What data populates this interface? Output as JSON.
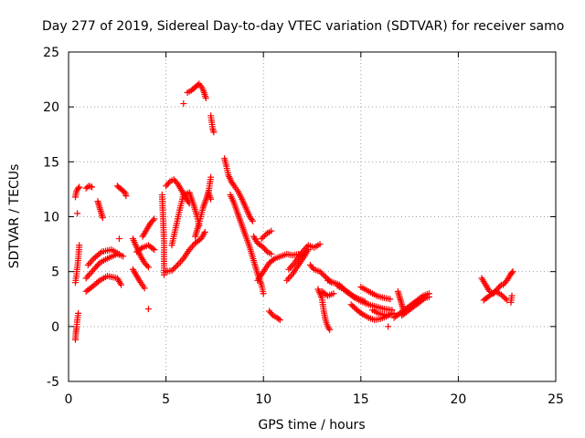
{
  "chart_data": {
    "type": "scatter",
    "title": "Day 277 of 2019, Sidereal Day-to-day VTEC variation (SDTVAR) for receiver samo",
    "xlabel": "GPS time / hours",
    "ylabel": "SDTVAR / TECUs",
    "xlim": [
      0,
      25
    ],
    "ylim": [
      -5,
      25
    ],
    "xticks": [
      0,
      5,
      10,
      15,
      20,
      25
    ],
    "yticks": [
      -5,
      0,
      5,
      10,
      15,
      20,
      25
    ],
    "grid": true,
    "marker": "+",
    "series": [
      {
        "name": "SDTVAR",
        "color": "#ff0000",
        "segments": [
          [
            [
              0.35,
              -1.2
            ],
            [
              0.38,
              -0.5
            ],
            [
              0.42,
              0.0
            ],
            [
              0.45,
              0.6
            ],
            [
              0.5,
              1.2
            ]
          ],
          [
            [
              0.35,
              4.0
            ],
            [
              0.4,
              4.6
            ],
            [
              0.45,
              5.4
            ],
            [
              0.5,
              6.2
            ],
            [
              0.55,
              7.4
            ]
          ],
          [
            [
              0.35,
              11.8
            ],
            [
              0.4,
              12.3
            ],
            [
              0.5,
              12.6
            ],
            [
              0.55,
              12.7
            ]
          ],
          [
            [
              0.45,
              10.3
            ]
          ],
          [
            [
              0.9,
              12.6
            ],
            [
              1.05,
              12.8
            ],
            [
              1.2,
              12.7
            ]
          ],
          [
            [
              0.9,
              3.2
            ],
            [
              1.2,
              3.6
            ],
            [
              1.6,
              4.2
            ],
            [
              2.0,
              4.6
            ],
            [
              2.5,
              4.4
            ],
            [
              2.7,
              3.8
            ]
          ],
          [
            [
              0.9,
              4.4
            ],
            [
              1.2,
              5.0
            ],
            [
              1.6,
              5.8
            ],
            [
              2.0,
              6.2
            ],
            [
              2.5,
              6.6
            ],
            [
              2.8,
              6.4
            ]
          ],
          [
            [
              1.0,
              5.6
            ],
            [
              1.3,
              6.2
            ],
            [
              1.7,
              6.8
            ],
            [
              2.2,
              7.0
            ],
            [
              2.6,
              6.6
            ]
          ],
          [
            [
              1.5,
              11.4
            ],
            [
              1.6,
              10.8
            ],
            [
              1.7,
              10.2
            ],
            [
              1.75,
              9.9
            ]
          ],
          [
            [
              2.5,
              12.8
            ],
            [
              2.7,
              12.5
            ],
            [
              2.9,
              12.2
            ],
            [
              2.95,
              11.9
            ]
          ],
          [
            [
              2.6,
              8.0
            ]
          ],
          [
            [
              3.3,
              8.0
            ],
            [
              3.5,
              7.2
            ],
            [
              3.7,
              6.4
            ],
            [
              3.9,
              5.8
            ],
            [
              4.1,
              5.4
            ]
          ],
          [
            [
              3.3,
              5.2
            ],
            [
              3.5,
              4.6
            ],
            [
              3.7,
              4.0
            ],
            [
              3.9,
              3.5
            ]
          ],
          [
            [
              3.5,
              6.8
            ],
            [
              3.8,
              7.2
            ],
            [
              4.1,
              7.4
            ],
            [
              4.4,
              7.0
            ]
          ],
          [
            [
              3.8,
              8.2
            ],
            [
              4.0,
              8.8
            ],
            [
              4.2,
              9.4
            ],
            [
              4.4,
              9.8
            ]
          ],
          [
            [
              4.1,
              1.6
            ]
          ],
          [
            [
              4.8,
              12.0
            ],
            [
              4.9,
              7.8
            ],
            [
              4.9,
              4.7
            ]
          ],
          [
            [
              5.0,
              5.0
            ],
            [
              5.3,
              5.1
            ],
            [
              5.6,
              5.6
            ],
            [
              5.9,
              6.2
            ],
            [
              6.2,
              7.0
            ],
            [
              6.5,
              7.6
            ],
            [
              6.8,
              8.0
            ],
            [
              7.0,
              8.6
            ]
          ],
          [
            [
              5.0,
              12.8
            ],
            [
              5.2,
              13.2
            ],
            [
              5.4,
              13.4
            ],
            [
              5.6,
              13.0
            ],
            [
              5.8,
              12.4
            ],
            [
              6.0,
              11.8
            ],
            [
              6.2,
              11.2
            ]
          ],
          [
            [
              5.3,
              7.4
            ],
            [
              5.5,
              9.0
            ],
            [
              5.7,
              10.6
            ],
            [
              5.9,
              12.0
            ],
            [
              6.2,
              12.2
            ],
            [
              6.4,
              11.2
            ],
            [
              6.6,
              10.0
            ],
            [
              6.7,
              9.2
            ]
          ],
          [
            [
              5.9,
              20.3
            ]
          ],
          [
            [
              6.1,
              21.3
            ],
            [
              6.3,
              21.5
            ],
            [
              6.5,
              21.8
            ],
            [
              6.7,
              22.1
            ],
            [
              6.9,
              21.6
            ],
            [
              7.05,
              20.8
            ]
          ],
          [
            [
              6.5,
              8.2
            ],
            [
              6.7,
              9.4
            ],
            [
              6.9,
              10.8
            ],
            [
              7.1,
              11.8
            ],
            [
              7.2,
              12.4
            ],
            [
              7.3,
              13.6
            ]
          ],
          [
            [
              7.3,
              19.2
            ],
            [
              7.4,
              18.0
            ],
            [
              7.45,
              17.7
            ]
          ],
          [
            [
              7.2,
              12.1
            ],
            [
              7.3,
              11.6
            ]
          ],
          [
            [
              8.0,
              15.3
            ],
            [
              8.1,
              14.6
            ],
            [
              8.2,
              13.8
            ],
            [
              8.35,
              13.2
            ],
            [
              8.5,
              12.8
            ],
            [
              8.7,
              12.3
            ],
            [
              8.9,
              11.6
            ],
            [
              9.1,
              10.8
            ],
            [
              9.3,
              10.0
            ],
            [
              9.45,
              9.6
            ]
          ],
          [
            [
              8.3,
              12.0
            ],
            [
              8.5,
              11.2
            ],
            [
              8.7,
              10.2
            ],
            [
              8.9,
              9.2
            ],
            [
              9.1,
              8.2
            ],
            [
              9.3,
              7.2
            ],
            [
              9.5,
              6.0
            ],
            [
              9.7,
              4.8
            ],
            [
              9.9,
              3.8
            ],
            [
              10.0,
              3.0
            ]
          ],
          [
            [
              9.5,
              8.2
            ],
            [
              9.7,
              7.6
            ],
            [
              10.0,
              7.2
            ],
            [
              10.2,
              6.8
            ],
            [
              10.4,
              6.6
            ]
          ],
          [
            [
              9.9,
              8.0
            ],
            [
              10.2,
              8.5
            ],
            [
              10.4,
              8.7
            ]
          ],
          [
            [
              9.7,
              4.2
            ],
            [
              10.0,
              5.0
            ],
            [
              10.3,
              5.8
            ],
            [
              10.6,
              6.2
            ],
            [
              10.9,
              6.4
            ],
            [
              11.2,
              6.6
            ],
            [
              11.5,
              6.5
            ],
            [
              11.8,
              6.6
            ],
            [
              12.1,
              6.4
            ]
          ],
          [
            [
              10.3,
              1.4
            ],
            [
              10.5,
              1.0
            ],
            [
              10.7,
              0.8
            ],
            [
              10.85,
              0.6
            ]
          ],
          [
            [
              11.2,
              4.2
            ],
            [
              11.5,
              4.8
            ],
            [
              11.8,
              5.6
            ],
            [
              12.1,
              6.4
            ],
            [
              12.3,
              7.0
            ]
          ],
          [
            [
              11.3,
              5.2
            ],
            [
              11.6,
              5.8
            ],
            [
              12.0,
              6.8
            ],
            [
              12.3,
              7.4
            ],
            [
              12.6,
              7.2
            ],
            [
              12.9,
              7.5
            ]
          ],
          [
            [
              12.4,
              5.6
            ],
            [
              12.6,
              5.2
            ],
            [
              12.9,
              5.0
            ],
            [
              13.2,
              4.5
            ],
            [
              13.5,
              4.0
            ]
          ],
          [
            [
              12.8,
              3.4
            ],
            [
              13.0,
              2.6
            ],
            [
              13.1,
              1.4
            ],
            [
              13.2,
              0.5
            ],
            [
              13.3,
              0.0
            ],
            [
              13.4,
              -0.3
            ]
          ],
          [
            [
              13.0,
              3.2
            ],
            [
              13.3,
              2.8
            ],
            [
              13.6,
              3.0
            ]
          ],
          [
            [
              13.3,
              4.2
            ],
            [
              13.6,
              4.0
            ],
            [
              13.9,
              3.8
            ],
            [
              14.2,
              3.3
            ],
            [
              14.5,
              2.9
            ],
            [
              14.8,
              2.6
            ],
            [
              15.2,
              2.3
            ]
          ],
          [
            [
              13.8,
              3.7
            ],
            [
              14.1,
              3.4
            ],
            [
              14.4,
              3.0
            ],
            [
              14.7,
              2.6
            ],
            [
              15.0,
              2.3
            ],
            [
              15.4,
              2.0
            ],
            [
              15.8,
              1.8
            ],
            [
              16.2,
              1.6
            ],
            [
              16.6,
              1.5
            ]
          ],
          [
            [
              14.5,
              2.0
            ],
            [
              14.8,
              1.5
            ],
            [
              15.1,
              1.1
            ],
            [
              15.4,
              0.8
            ],
            [
              15.7,
              0.6
            ],
            [
              16.0,
              0.7
            ],
            [
              16.3,
              0.9
            ],
            [
              16.6,
              1.2
            ]
          ],
          [
            [
              15.0,
              3.6
            ],
            [
              15.4,
              3.2
            ],
            [
              15.8,
              2.8
            ],
            [
              16.2,
              2.6
            ],
            [
              16.5,
              2.5
            ]
          ],
          [
            [
              15.6,
              1.5
            ],
            [
              15.9,
              1.2
            ],
            [
              16.3,
              1.0
            ],
            [
              16.7,
              1.2
            ]
          ],
          [
            [
              16.4,
              0.0
            ]
          ],
          [
            [
              16.7,
              0.8
            ],
            [
              17.0,
              1.2
            ],
            [
              17.3,
              1.6
            ],
            [
              17.6,
              2.0
            ],
            [
              17.9,
              2.4
            ],
            [
              18.2,
              2.8
            ],
            [
              18.5,
              3.0
            ]
          ],
          [
            [
              16.9,
              3.2
            ],
            [
              17.0,
              2.6
            ],
            [
              17.1,
              2.0
            ],
            [
              17.2,
              1.4
            ]
          ],
          [
            [
              17.1,
              1.0
            ],
            [
              17.4,
              1.4
            ],
            [
              17.7,
              1.8
            ],
            [
              18.0,
              2.2
            ],
            [
              18.3,
              2.6
            ],
            [
              18.5,
              2.7
            ]
          ],
          [
            [
              21.2,
              4.4
            ],
            [
              21.4,
              3.8
            ],
            [
              21.6,
              3.2
            ],
            [
              21.8,
              3.0
            ],
            [
              22.0,
              3.4
            ],
            [
              22.2,
              3.8
            ]
          ],
          [
            [
              21.3,
              2.4
            ],
            [
              21.6,
              2.8
            ],
            [
              21.9,
              3.2
            ],
            [
              22.2,
              2.9
            ],
            [
              22.5,
              2.4
            ]
          ],
          [
            [
              22.3,
              3.8
            ],
            [
              22.5,
              4.2
            ],
            [
              22.7,
              4.8
            ],
            [
              22.8,
              5.0
            ]
          ],
          [
            [
              22.7,
              2.2
            ],
            [
              22.75,
              2.8
            ]
          ]
        ]
      }
    ]
  }
}
